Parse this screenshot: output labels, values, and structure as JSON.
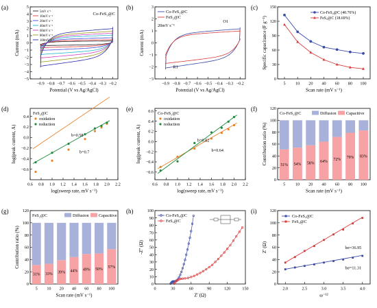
{
  "chart_data": [
    {
      "panel": "(a)",
      "type": "line",
      "xlabel": "Potential (V vs Ag/AgCl)",
      "ylabel": "Current (mA)",
      "xlim": [
        -1.0,
        -0.15
      ],
      "ylim": [
        -5,
        5
      ],
      "xticks": [
        -0.9,
        -0.8,
        -0.7,
        -0.6,
        -0.5,
        -0.4,
        -0.3,
        -0.2
      ],
      "yticks": [
        -5,
        -4,
        -3,
        -2,
        -1,
        0,
        1,
        2,
        3,
        4,
        5
      ],
      "annotation": "Co-FeS₂@C",
      "legend_position": "top-left",
      "cv_window": [
        -0.9,
        -0.2
      ],
      "series": [
        {
          "name": "5mV s⁻¹",
          "color": "#202020",
          "i_max": 0.3,
          "i_min": -0.4
        },
        {
          "name": "10mV s⁻¹",
          "color": "#e23a3a",
          "i_max": 0.5,
          "i_min": -0.7
        },
        {
          "name": "20mV s⁻¹",
          "color": "#3f49d6",
          "i_max": 0.8,
          "i_min": -1.1
        },
        {
          "name": "40mV s⁻¹",
          "color": "#20b7c9",
          "i_max": 1.2,
          "i_min": -1.7
        },
        {
          "name": "60mV s⁻¹",
          "color": "#d13fc0",
          "i_max": 1.5,
          "i_min": -2.2
        },
        {
          "name": "80mV s⁻¹",
          "color": "#9a9a20",
          "i_max": 1.8,
          "i_min": -2.8
        },
        {
          "name": "100mV s⁻¹",
          "color": "#2a2aa8",
          "i_max": 2.2,
          "i_min": -3.4
        }
      ]
    },
    {
      "panel": "(b)",
      "type": "line",
      "xlabel": "Potential (V vs Ag/AgCl)",
      "ylabel": "Current (mA)",
      "xlim": [
        -1.0,
        -0.15
      ],
      "ylim": [
        -3,
        3
      ],
      "xticks": [
        -0.9,
        -0.8,
        -0.7,
        -0.6,
        -0.5,
        -0.4,
        -0.3,
        -0.2
      ],
      "yticks": [
        -3,
        -2,
        -1,
        0,
        1,
        2,
        3
      ],
      "legend_position": "top-left",
      "scan_rate_label": "20mV s⁻¹",
      "peak_labels": [
        "O1",
        "R1"
      ],
      "series": [
        {
          "name": "Co-FeS₂@C",
          "color": "#3a4aa8",
          "i_max": 1.3,
          "i_min": -2.2
        },
        {
          "name": "FeS₂@C",
          "color": "#d93a3a",
          "i_max": 1.1,
          "i_min": -1.8
        }
      ]
    },
    {
      "panel": "(c)",
      "type": "line",
      "xlabel": "Scan rate (mV s⁻¹)",
      "ylabel": "Specific capacitance (F g⁻¹)",
      "categories": [
        "5",
        "10",
        "20",
        "40",
        "60",
        "80",
        "100"
      ],
      "ylim": [
        0,
        150
      ],
      "yticks": [
        0,
        30,
        60,
        90,
        120,
        150
      ],
      "legend_position": "top-right",
      "series": [
        {
          "name": "Co-FeS₂@C (40.76%)",
          "color": "#3a4aa8",
          "marker": "circle",
          "values": [
            133,
            98,
            78,
            66,
            61,
            56,
            53
          ]
        },
        {
          "name": "FeS₂@C (18.69%)",
          "color": "#d93a3a",
          "marker": "triangle",
          "values": [
            113,
            77,
            55,
            40,
            30,
            24,
            21
          ]
        }
      ]
    },
    {
      "panel": "(d)",
      "type": "scatter",
      "xlabel": "log(sweep rate, mV s⁻¹)",
      "ylabel": "log(peak current, A)",
      "xlim": [
        0.6,
        2.2
      ],
      "ylim": [
        -0.8,
        0.55
      ],
      "xticks": [
        0.6,
        0.8,
        1.0,
        1.2,
        1.4,
        1.6,
        1.8,
        2.0,
        2.2
      ],
      "yticks": [
        -0.6,
        -0.4,
        -0.2,
        0.0,
        0.2,
        0.4
      ],
      "annotation": "FeS₂@C",
      "legend_position": "top-left",
      "x": [
        0.7,
        1.0,
        1.3,
        1.6,
        1.78,
        1.9,
        2.0
      ],
      "series": [
        {
          "name": "oxidation",
          "color": "#e8822a",
          "values": [
            -0.65,
            -0.44,
            -0.23,
            -0.03,
            0.12,
            0.19,
            0.26
          ],
          "fit": [
            -0.67,
            0.7
          ]
        },
        {
          "name": "reduction",
          "color": "#1d8a3c",
          "values": [
            -0.47,
            -0.29,
            -0.12,
            0.06,
            0.17,
            0.22,
            0.28
          ],
          "fit": [
            -0.87,
            0.58
          ]
        }
      ],
      "fit_labels": [
        "b=0.58",
        "b=0.7"
      ]
    },
    {
      "panel": "(e)",
      "type": "scatter",
      "xlabel": "log(sweep rate, mV s⁻¹)",
      "ylabel": "log(peak current, A)",
      "xlim": [
        0.6,
        2.2
      ],
      "ylim": [
        -0.75,
        0.65
      ],
      "xticks": [
        0.6,
        0.8,
        1.0,
        1.2,
        1.4,
        1.6,
        1.8,
        2.0,
        2.2
      ],
      "yticks": [
        -0.6,
        -0.4,
        -0.2,
        0.0,
        0.2,
        0.4,
        0.6
      ],
      "annotation": "Co-FeS₂@C",
      "legend_position": "top-left",
      "x": [
        0.7,
        1.0,
        1.3,
        1.6,
        1.78,
        1.9,
        2.0
      ],
      "series": [
        {
          "name": "oxidation",
          "color": "#e8822a",
          "values": [
            -0.5,
            -0.3,
            -0.14,
            0.06,
            0.17,
            0.24,
            0.32
          ],
          "fit": [
            -0.95,
            0.64
          ]
        },
        {
          "name": "reduction",
          "color": "#1d8a3c",
          "values": [
            -0.57,
            -0.39,
            -0.03,
            0.18,
            0.27,
            0.39,
            0.48
          ],
          "fit": [
            -1.16,
            0.82
          ]
        }
      ],
      "fit_labels": [
        "b=0.82",
        "b=0.64"
      ]
    },
    {
      "panel": "(f)",
      "type": "bar",
      "xlabel": "Scan rate (mV s⁻¹)",
      "ylabel": "Contribution ratio (%)",
      "categories": [
        "5",
        "10",
        "20",
        "40",
        "60",
        "80",
        "100"
      ],
      "ylim": [
        0,
        120
      ],
      "yticks": [
        0,
        20,
        40,
        60,
        80,
        100,
        120
      ],
      "legend_position": "top",
      "annotation": "Co-FeS₂@C",
      "series": [
        {
          "name": "Diffusion",
          "color": "#a7b1d9",
          "values": [
            49,
            46,
            42,
            36,
            28,
            21,
            17
          ]
        },
        {
          "name": "Capacitive",
          "color": "#f7a3a5",
          "values": [
            51,
            54,
            58,
            64,
            72,
            79,
            83
          ]
        }
      ],
      "bar_labels": [
        "51%",
        "54%",
        "58%",
        "64%",
        "72%",
        "79%",
        "83%"
      ]
    },
    {
      "panel": "(g)",
      "type": "bar",
      "xlabel": "Scan rate (mV s⁻¹)",
      "ylabel": "Contribution ratio (%)",
      "categories": [
        "5",
        "10",
        "20",
        "40",
        "60",
        "80",
        "100"
      ],
      "ylim": [
        0,
        120
      ],
      "yticks": [
        0,
        20,
        40,
        60,
        80,
        100,
        120
      ],
      "legend_position": "top",
      "annotation": "FeS₂@C",
      "series": [
        {
          "name": "Diffusion",
          "color": "#a7b1d9",
          "values": [
            69,
            67,
            61,
            56,
            51,
            50,
            43
          ]
        },
        {
          "name": "Capacitive",
          "color": "#f7a3a5",
          "values": [
            31,
            33,
            39,
            44,
            49,
            50,
            57
          ]
        }
      ],
      "bar_labels": [
        "31%",
        "33%",
        "39%",
        "44%",
        "49%",
        "50%",
        "57%"
      ]
    },
    {
      "panel": "(h)",
      "type": "line",
      "xlabel": "Z' (Ω)",
      "ylabel": "-Z'' (Ω)",
      "xlim": [
        0,
        150
      ],
      "ylim": [
        0,
        100
      ],
      "xticks": [
        0,
        30,
        60,
        90,
        120,
        150
      ],
      "yticks": [
        0,
        10,
        20,
        30,
        40,
        50,
        60,
        70,
        80,
        90,
        100
      ],
      "legend_position": "top-left",
      "series": [
        {
          "name": "Co-FeS₂@C",
          "color": "#3a4aa8",
          "marker": "circle",
          "x": [
            26,
            27,
            28,
            29,
            30,
            31,
            32,
            34,
            36,
            38,
            40,
            42,
            44,
            46,
            48,
            50,
            52,
            54,
            56,
            58,
            60,
            62,
            64
          ],
          "y": [
            0.5,
            1.5,
            2.6,
            3.2,
            3.5,
            3.5,
            3.5,
            3.9,
            4.8,
            6.5,
            9,
            12.5,
            16.5,
            21.5,
            27,
            33,
            40,
            47,
            55,
            63,
            72,
            82,
            93
          ]
        },
        {
          "name": "FeS₂@C",
          "color": "#d93a3a",
          "marker": "circle",
          "x": [
            32,
            34,
            36,
            38,
            40,
            43,
            46,
            50,
            55,
            60,
            65,
            70,
            75,
            80,
            85,
            90,
            95,
            100,
            105,
            110,
            115,
            120,
            125,
            130,
            135,
            140,
            145
          ],
          "y": [
            0.5,
            2.5,
            4.2,
            5.4,
            6.3,
            7.0,
            7.3,
            7.6,
            8.3,
            9.5,
            11,
            13,
            15,
            17.5,
            20,
            23,
            26,
            30,
            34,
            38.5,
            43,
            48,
            53,
            59,
            65,
            71,
            77
          ]
        }
      ]
    },
    {
      "panel": "(i)",
      "type": "scatter",
      "xlabel": "ω⁻¹²",
      "ylabel": "Z' (Ω)",
      "xlim": [
        1.8,
        4.2
      ],
      "ylim": [
        0,
        120
      ],
      "xticks": [
        2.0,
        2.5,
        3.0,
        3.5,
        4.0
      ],
      "yticks": [
        0,
        20,
        40,
        60,
        80,
        100,
        120
      ],
      "legend_position": "top-left",
      "x": [
        2.0,
        2.25,
        2.5,
        2.75,
        3.0,
        3.25,
        3.5,
        3.75,
        4.0
      ],
      "series": [
        {
          "name": "Co-FeS₂@C",
          "color": "#3a4aa8",
          "marker": "square",
          "values": [
            24,
            27,
            29.5,
            32,
            35,
            37.5,
            40,
            43,
            46
          ],
          "fit": [
            1.5,
            11.31
          ]
        },
        {
          "name": "FeS₂@C",
          "color": "#d93a3a",
          "marker": "square",
          "values": [
            35,
            44,
            54,
            62,
            72,
            81,
            89,
            99,
            108
          ],
          "fit": [
            -38.7,
            36.95
          ]
        }
      ],
      "fit_labels": [
        "bσ=36.95",
        "bσ=11.31"
      ]
    }
  ]
}
